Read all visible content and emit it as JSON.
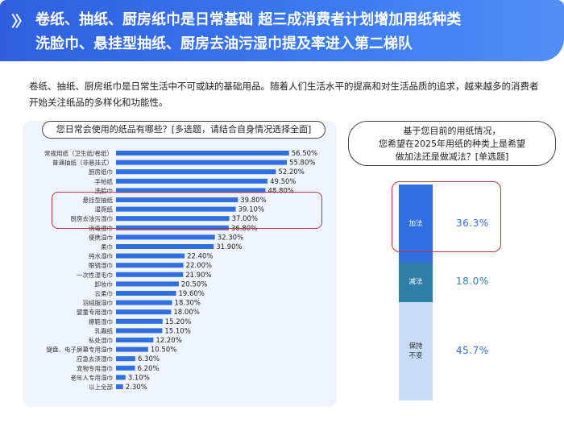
{
  "header": {
    "icon": "chevron-double-right-icon",
    "line1": "卷纸、抽纸、厨房纸巾是日常基础  超三成消费者计划增加用纸种类",
    "line2": "洗脸巾、悬挂型抽纸、厨房去油污湿巾提及率进入第二梯队"
  },
  "intro": {
    "text": "卷纸、抽纸、厨房纸巾是日常生活中不可或缺的基础用品。随着人们生活水平的提高和对生活品质的追求，越来越多的消费者开始关注纸品的多样化和功能性。"
  },
  "colors": {
    "header_blue": "#3b6fe8",
    "bar_blue": "#2f6fe0",
    "highlight_red": "#c0333a",
    "seg_add": "#2f6fe0",
    "seg_reduce": "#2e7fa8",
    "seg_keep": "#c8dcf7"
  },
  "chart_data": [
    {
      "type": "bar",
      "orientation": "horizontal",
      "title": "您日常会使用的纸品有哪些？[多选题，请结合自身情况选择全面]",
      "categories": [
        "常规用纸（卫生纸/卷纸）",
        "普通抽纸（非悬挂式）",
        "厨房纸巾",
        "手帕纸",
        "洗脸巾",
        "悬挂型抽纸",
        "湿厕纸",
        "厨房去油污湿巾",
        "消毒湿巾",
        "便携湿巾",
        "柔巾",
        "纯水湿巾",
        "眼镜湿巾",
        "一次性湿毛巾",
        "卸妆巾",
        "云柔巾",
        "羽绒服湿巾",
        "婴童专用湿巾",
        "擦鞋湿巾",
        "乳霜纸",
        "私处湿巾",
        "键盘、电子屏幕专用湿巾",
        "应急去渍湿巾",
        "宠物专用湿巾",
        "老年人专用湿巾",
        "以上全部"
      ],
      "values": [
        56.5,
        55.8,
        52.2,
        49.5,
        48.8,
        39.8,
        39.1,
        37.0,
        36.8,
        32.3,
        31.9,
        22.4,
        22.0,
        21.9,
        20.5,
        19.6,
        18.3,
        18.0,
        15.2,
        15.1,
        12.2,
        10.5,
        6.3,
        6.2,
        3.1,
        2.3
      ],
      "labels": [
        "56.50%",
        "55.80%",
        "52.20%",
        "49.50%",
        "48.80%",
        "39.80%",
        "39.10%",
        "37.00%",
        "36.80%",
        "32.30%",
        "31.90%",
        "22.40%",
        "22.00%",
        "21.90%",
        "20.50%",
        "19.60%",
        "18.30%",
        "18.00%",
        "15.20%",
        "15.10%",
        "12.20%",
        "10.50%",
        "6.30%",
        "6.20%",
        "3.10%",
        "2.30%"
      ],
      "highlighted_categories": [
        "洗脸巾",
        "悬挂型抽纸",
        "湿厕纸",
        "厨房去油污湿巾"
      ],
      "xlim": [
        0,
        60
      ]
    },
    {
      "type": "bar",
      "orientation": "stacked-vertical",
      "title_lines": [
        "基于您目前的用纸情况，",
        "您希望在2025年用纸的种类上是希望",
        "做加法还是做减法？[单选题]"
      ],
      "segments": [
        {
          "name": "加法",
          "value": 36.3,
          "label": "36.3%"
        },
        {
          "name": "减法",
          "value": 18.0,
          "label": "18.0%"
        },
        {
          "name_lines": [
            "保持",
            "不变"
          ],
          "value": 45.7,
          "label": "45.7%"
        }
      ],
      "highlighted_segment": "加法"
    }
  ]
}
